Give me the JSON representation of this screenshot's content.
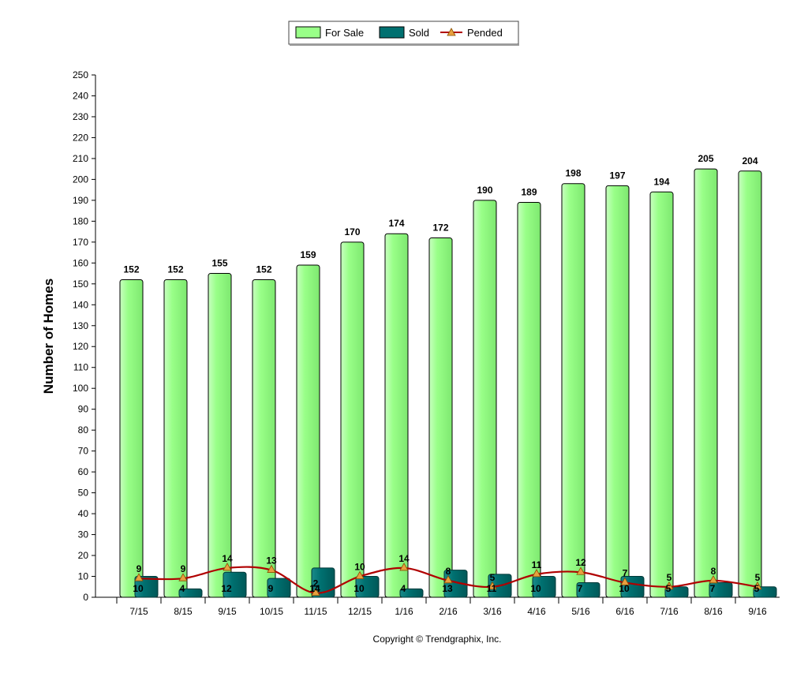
{
  "chart_data": {
    "type": "bar",
    "categories": [
      "7/15",
      "8/15",
      "9/15",
      "10/15",
      "11/15",
      "12/15",
      "1/16",
      "2/16",
      "3/16",
      "4/16",
      "5/16",
      "6/16",
      "7/16",
      "8/16",
      "9/16"
    ],
    "series": [
      {
        "name": "For Sale",
        "type": "bar",
        "color": "#99ff88",
        "values": [
          152,
          152,
          155,
          152,
          159,
          170,
          174,
          172,
          190,
          189,
          198,
          197,
          194,
          205,
          204
        ]
      },
      {
        "name": "Sold",
        "type": "bar",
        "color": "#007070",
        "values": [
          10,
          4,
          12,
          9,
          14,
          10,
          4,
          13,
          11,
          10,
          7,
          10,
          5,
          7,
          5
        ]
      },
      {
        "name": "Pended",
        "type": "line",
        "color": "#b00000",
        "marker_color": "#e8a040",
        "values": [
          9,
          9,
          14,
          13,
          2,
          10,
          14,
          8,
          5,
          11,
          12,
          7,
          5,
          8,
          5
        ]
      }
    ],
    "ylabel": "Number of Homes",
    "xlabel": "",
    "ylim": [
      0,
      250
    ],
    "ytick_step": 10,
    "legend_position": "top-center",
    "grid": false
  },
  "footer": {
    "copyright": "Copyright © Trendgraphix, Inc."
  }
}
